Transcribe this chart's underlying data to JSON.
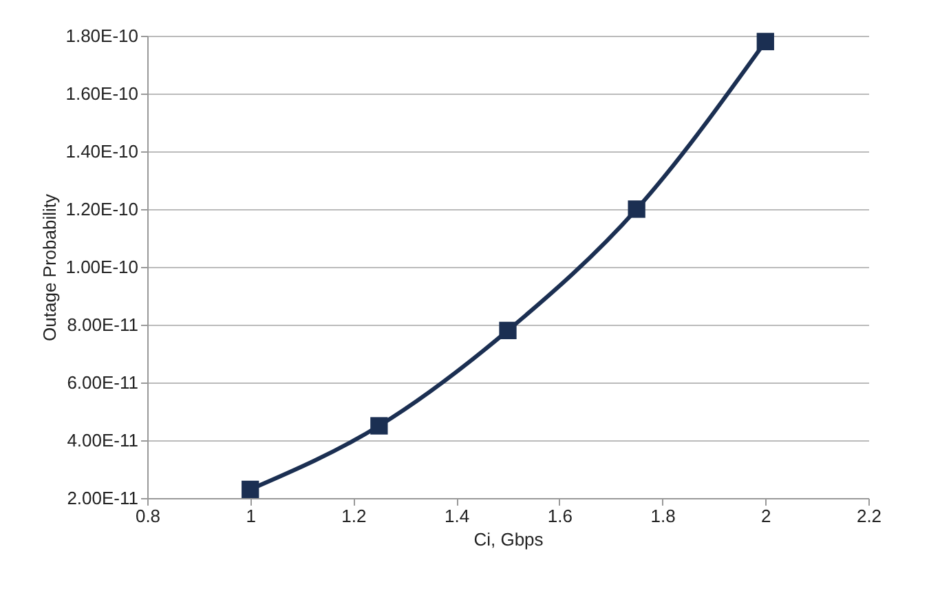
{
  "chart_data": {
    "type": "line",
    "xlabel": "Ci, Gbps",
    "ylabel": "Outage Probability",
    "x": [
      1,
      1.25,
      1.5,
      1.75,
      2
    ],
    "series": [
      {
        "color": "#1b2f52",
        "values": [
          2.3e-11,
          4.5e-11,
          7.8e-11,
          1.2e-10,
          1.78e-10
        ]
      }
    ],
    "xlim": [
      0.8,
      2.2
    ],
    "xticks": [
      0.8,
      1,
      1.2,
      1.4,
      1.6,
      1.8,
      2,
      2.2
    ],
    "ylim": [
      2e-11,
      1.8e-10
    ],
    "yticks": [
      {
        "value": 2e-11,
        "label": "2.00E-11"
      },
      {
        "value": 4e-11,
        "label": "4.00E-11"
      },
      {
        "value": 6e-11,
        "label": "6.00E-11"
      },
      {
        "value": 8e-11,
        "label": "8.00E-11"
      },
      {
        "value": 1e-10,
        "label": "1.00E-10"
      },
      {
        "value": 1.2e-10,
        "label": "1.20E-10"
      },
      {
        "value": 1.4e-10,
        "label": "1.40E-10"
      },
      {
        "value": 1.6e-10,
        "label": "1.60E-10"
      },
      {
        "value": 1.8e-10,
        "label": "1.80E-10"
      }
    ],
    "grid": "y",
    "marker": "square",
    "line_style": "solid"
  }
}
